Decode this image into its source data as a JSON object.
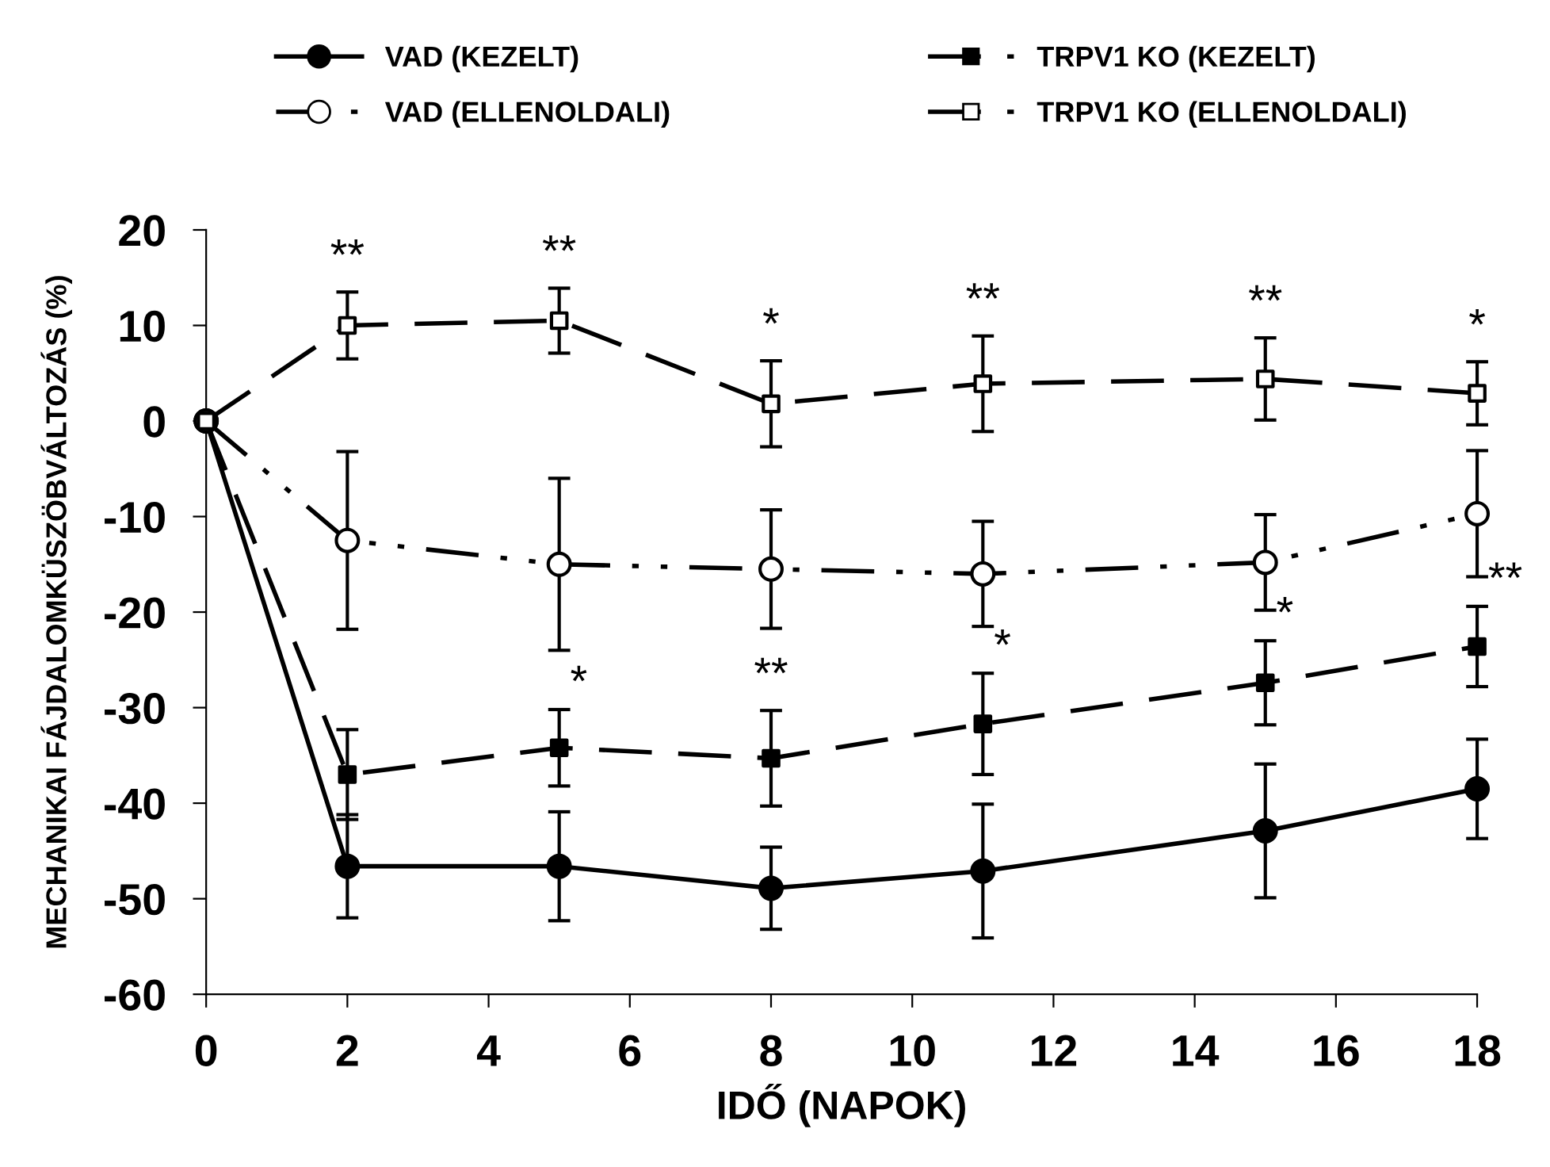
{
  "chart_data": {
    "type": "line",
    "xlabel": "IDŐ (NAPOK)",
    "ylabel": "MECHANIKAI FÁJDALOMKÜSZÖBVÁLTOZÁS (%)",
    "x": [
      0,
      2,
      5,
      8,
      11,
      15,
      18
    ],
    "xlim": [
      0,
      18
    ],
    "xticks": [
      0,
      2,
      4,
      6,
      8,
      10,
      12,
      14,
      16,
      18
    ],
    "ylim": [
      -60,
      20
    ],
    "yticks": [
      -60,
      -50,
      -40,
      -30,
      -20,
      -10,
      0,
      10,
      20
    ],
    "grid": false,
    "legend": "top",
    "series": [
      {
        "name": "VAD (KEZELT)",
        "color": "#000000",
        "marker": "circle",
        "line_style": "solid",
        "colors": [
          "#000000",
          "#000000",
          "#000000",
          "#000000",
          "#000000",
          "#000000",
          "#000000"
        ],
        "values": [
          0,
          -46.6,
          -46.6,
          -48.9,
          -47.1,
          -42.9,
          -38.5
        ],
        "errors": [
          null,
          5.4,
          5.7,
          4.3,
          7,
          7,
          5.2
        ]
      },
      {
        "name": "VAD (ELLENOLDALI)",
        "color": "#000000",
        "marker": "circle",
        "line_style": "dashdotdot",
        "colors": [
          "#ffffff",
          "#ffffff",
          "#ffffff",
          "#ffffff",
          "#ffffff",
          "#ffffff",
          "#ffffff"
        ],
        "values": [
          0,
          -12.5,
          -15.0,
          -15.5,
          -16.0,
          -14.8,
          -9.7
        ],
        "errors": [
          null,
          9.3,
          9,
          6.2,
          5.5,
          5,
          6.6
        ]
      },
      {
        "name": "TRPV1 KO (KEZELT)",
        "color": "#000000",
        "marker": "square",
        "line_style": "dashed",
        "colors": [
          "#000000",
          "#000000",
          "#000000",
          "#000000",
          "#000000",
          "#000000",
          "#000000"
        ],
        "values": [
          0,
          -37.0,
          -34.2,
          -35.3,
          -31.7,
          -27.4,
          -23.6
        ],
        "errors": [
          null,
          4.7,
          4,
          5,
          5.3,
          4.4,
          4.2
        ]
      },
      {
        "name": "TRPV1 KO (ELLENOLDALI)",
        "color": "#000000",
        "marker": "square",
        "line_style": "dashed",
        "colors": [
          "#ffffff",
          "#ffffff",
          "#ffffff",
          "#ffffff",
          "#ffffff",
          "#ffffff",
          "#ffffff"
        ],
        "values": [
          0,
          10.0,
          10.5,
          1.8,
          3.9,
          4.4,
          2.9
        ],
        "errors": [
          null,
          3.5,
          3.4,
          4.5,
          5,
          4.3,
          3.3
        ]
      }
    ],
    "annotations": [
      {
        "text": "**",
        "x": 2,
        "y": 10.0
      },
      {
        "text": "**",
        "x": 5,
        "y": 10.5
      },
      {
        "text": "*",
        "x": 8,
        "y": 1.8
      },
      {
        "text": "**",
        "x": 11,
        "y": 3.9
      },
      {
        "text": "**",
        "x": 15,
        "y": 4.4
      },
      {
        "text": "*",
        "x": 18,
        "y": 2.9
      },
      {
        "text": "*",
        "x": 5,
        "y": -34.2
      },
      {
        "text": "**",
        "x": 8,
        "y": -35.3
      },
      {
        "text": "*",
        "x": 11,
        "y": -31.7
      },
      {
        "text": "*",
        "x": 15,
        "y": -27.4
      },
      {
        "text": "**",
        "x": 18,
        "y": -23.6
      }
    ]
  }
}
